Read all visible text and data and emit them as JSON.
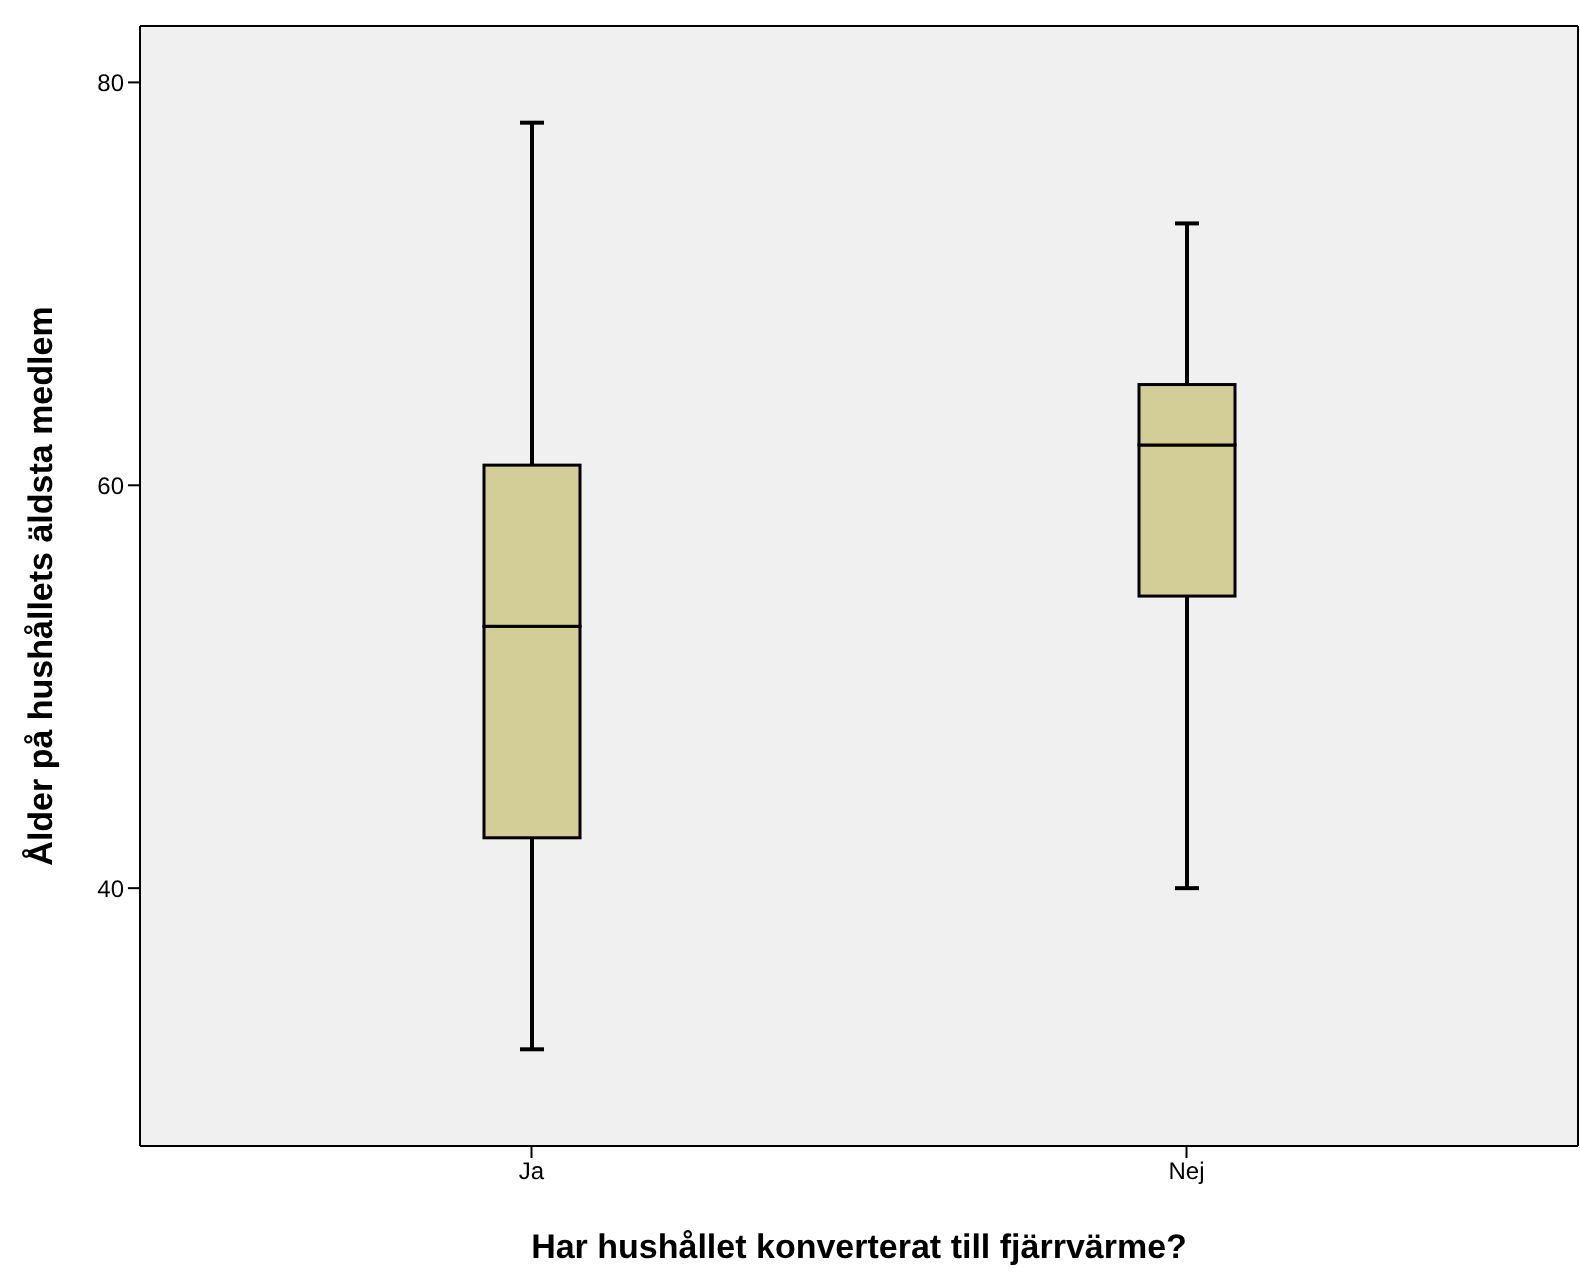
{
  "chart_data": {
    "type": "box",
    "xlabel": "Har hushållet konverterat till fjärrvärme?",
    "ylabel": "Ålder på hushållets äldsta medlem",
    "categories": [
      "Ja",
      "Nej"
    ],
    "boxes": [
      {
        "low": 32,
        "q1": 42.5,
        "median": 53,
        "q3": 61,
        "high": 78
      },
      {
        "low": 40,
        "q1": 54.5,
        "median": 62,
        "q3": 65,
        "high": 73
      }
    ],
    "color": "#d3ce97",
    "ylim": [
      27.2,
      82.8
    ],
    "yticks": [
      40,
      60,
      80
    ],
    "grid": false
  }
}
